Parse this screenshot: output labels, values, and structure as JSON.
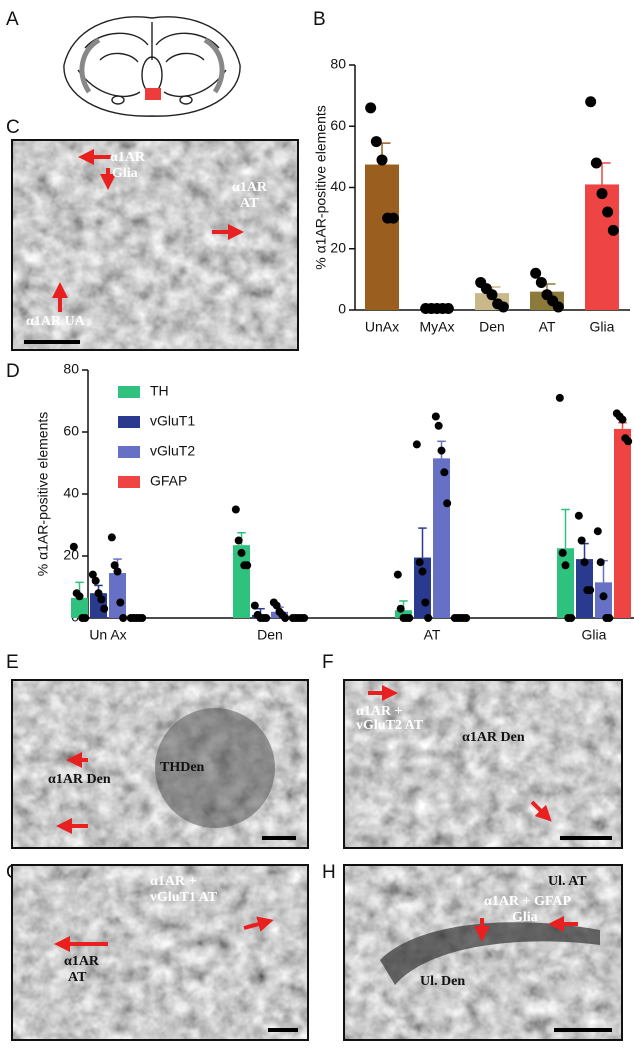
{
  "panels": [
    {
      "label": "A"
    },
    {
      "label": "B"
    },
    {
      "label": "C",
      "annotations": [
        "α1AR",
        "Glia",
        "α1AR",
        "AT",
        "α1AR UA"
      ]
    },
    {
      "label": "D"
    },
    {
      "label": "E",
      "annotations": [
        "α1AR Den",
        "THDen"
      ]
    },
    {
      "label": "F",
      "annotations": [
        "α1AR +",
        "vGluT2 AT",
        "α1AR Den"
      ]
    },
    {
      "label": "G",
      "annotations": [
        "α1AR +",
        "vGluT1 AT",
        "α1AR",
        "AT"
      ]
    },
    {
      "label": "H",
      "annotations": [
        "Ul. AT",
        "α1AR + GFAP",
        "Glia",
        "Ul. Den"
      ]
    }
  ],
  "chart_data": [
    {
      "type": "bar",
      "y_label": "% α1AR-positive elements",
      "categories": [
        "UnAx",
        "MyAx",
        "Den",
        "AT",
        "Glia"
      ],
      "values": [
        47.5,
        0.5,
        5.5,
        6,
        41
      ],
      "errors": [
        7,
        0.3,
        2,
        2.5,
        7
      ],
      "points": [
        [
          66,
          55,
          49,
          30,
          30
        ],
        [
          0.5,
          0.5,
          0.5,
          0.5,
          0.5
        ],
        [
          9,
          7,
          5,
          2,
          1
        ],
        [
          12,
          9,
          5,
          3,
          1
        ],
        [
          68,
          48,
          38,
          32,
          26
        ]
      ],
      "colors": [
        "#9a5f1f",
        "#5a3a14",
        "#c9b98a",
        "#8c7a3a",
        "#ef4444"
      ],
      "ylim": [
        0,
        80
      ],
      "yticks": [
        0,
        20,
        40,
        60,
        80
      ]
    },
    {
      "type": "grouped_bar",
      "y_label": "% α1AR-positive elements",
      "categories": [
        "Un Ax",
        "Den",
        "AT",
        "Glia"
      ],
      "series": [
        {
          "name": "TH",
          "color": "#2ec27e",
          "values": [
            6.5,
            23.5,
            2.5,
            22.5
          ],
          "errors": [
            5,
            4,
            3,
            12.5
          ],
          "points": [
            [
              23,
              8,
              7,
              0,
              0
            ],
            [
              35,
              25,
              21,
              17,
              17
            ],
            [
              14,
              3,
              0,
              0,
              0
            ],
            [
              71,
              21,
              17,
              0,
              0
            ]
          ]
        },
        {
          "name": "vGluT1",
          "color": "#2a3a8f",
          "values": [
            8,
            1,
            19.5,
            19
          ],
          "errors": [
            2.5,
            2,
            9.5,
            5
          ],
          "points": [
            [
              14,
              12,
              8,
              6,
              3
            ],
            [
              4,
              1,
              0,
              0,
              0
            ],
            [
              56,
              18,
              15,
              5,
              0
            ],
            [
              33,
              25,
              18,
              9,
              9
            ]
          ]
        },
        {
          "name": "vGluT2",
          "color": "#6670c4",
          "values": [
            14.5,
            2,
            51.5,
            11.5
          ],
          "errors": [
            4.5,
            1.5,
            5.5,
            7
          ],
          "points": [
            [
              26,
              17,
              15,
              5,
              0
            ],
            [
              5,
              4,
              2,
              1,
              0
            ],
            [
              65,
              62,
              54,
              47,
              37
            ],
            [
              28,
              18,
              7,
              0,
              0
            ]
          ]
        },
        {
          "name": "GFAP",
          "color": "#ef4444",
          "values": [
            0,
            0,
            0,
            61
          ],
          "errors": [
            0,
            0,
            0,
            2
          ],
          "points": [
            [
              0,
              0,
              0,
              0,
              0
            ],
            [
              0,
              0,
              0,
              0,
              0
            ],
            [
              0,
              0,
              0,
              0,
              0
            ],
            [
              66,
              65,
              64,
              58,
              57
            ]
          ]
        }
      ],
      "legend": "upper left",
      "ylim": [
        0,
        80
      ],
      "yticks": [
        0,
        20,
        40,
        60,
        80
      ]
    }
  ]
}
